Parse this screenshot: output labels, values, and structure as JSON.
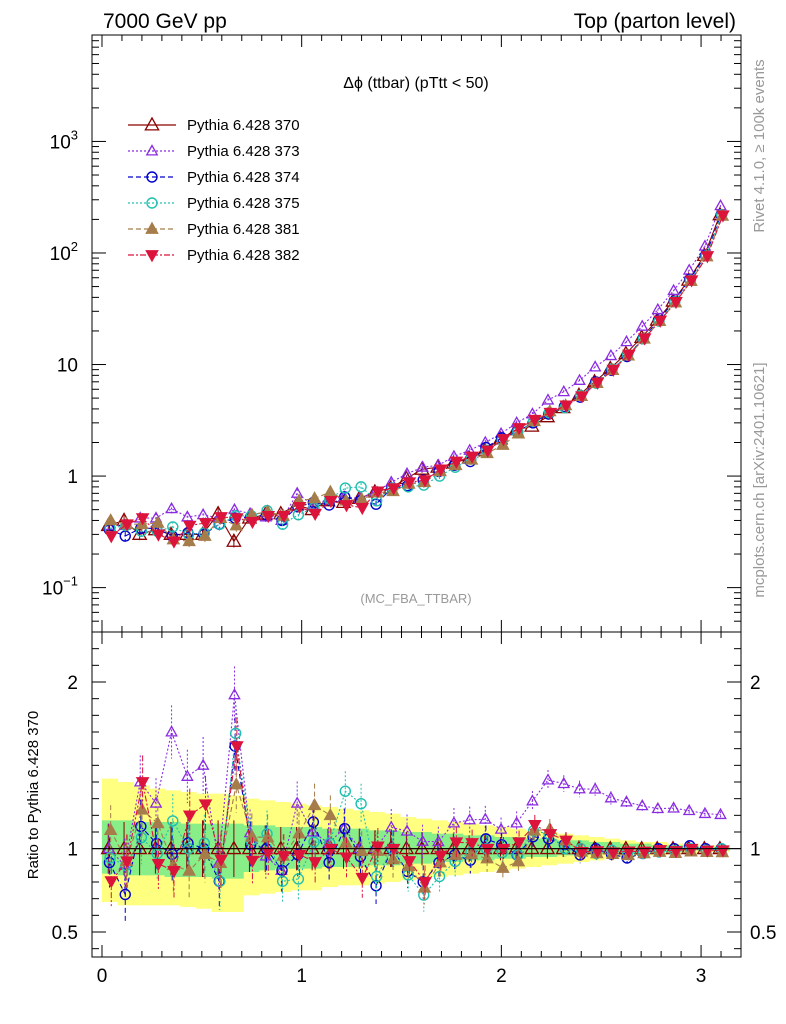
{
  "header": {
    "left": "7000 GeV pp",
    "right": "Top (parton level)"
  },
  "side_labels": {
    "rivet": "Rivet 4.1.0, ≥ 100k events",
    "mcplots": "mcplots.cern.ch [arXiv:2401.10621]"
  },
  "watermark": "(MC_FBA_TTBAR)",
  "colors": {
    "370": "#8b0000",
    "373": "#8a2be2",
    "374": "#0000cd",
    "375": "#20c0b0",
    "381": "#a57c4a",
    "382": "#dc143c",
    "band_outer": "#ffff80",
    "band_inner": "#88ee88"
  },
  "chart_data": {
    "type": "line",
    "title": "Δϕ (ttbar) (pTtt < 50)",
    "xlabel": "",
    "ylabel": "",
    "ratio_ylabel": "Ratio to Pythia 6.428 370",
    "xlim": [
      -0.05,
      3.2
    ],
    "ylim": [
      0.04,
      9000
    ],
    "yscale": "log",
    "ratio_ylim": [
      0.35,
      2.3
    ],
    "x_ticks": [
      "0",
      "1",
      "2",
      "3"
    ],
    "y_ticks": [
      "10^-1",
      "1",
      "10",
      "10^2",
      "10^3"
    ],
    "ratio_ticks": [
      "0.5",
      "1",
      "2"
    ],
    "x": [
      0.039,
      0.118,
      0.196,
      0.275,
      0.353,
      0.432,
      0.511,
      0.589,
      0.668,
      0.746,
      0.825,
      0.903,
      0.982,
      1.06,
      1.139,
      1.217,
      1.296,
      1.374,
      1.453,
      1.532,
      1.61,
      1.689,
      1.767,
      1.846,
      1.924,
      2.003,
      2.081,
      2.16,
      2.238,
      2.317,
      2.396,
      2.474,
      2.553,
      2.631,
      2.71,
      2.788,
      2.867,
      2.945,
      3.024,
      3.102
    ],
    "series": [
      {
        "name": "Pythia 6.428 370",
        "marker": "triangle-open",
        "line": "solid",
        "values": [
          0.36,
          0.4,
          0.3,
          0.33,
          0.3,
          0.3,
          0.3,
          0.46,
          0.26,
          0.42,
          0.45,
          0.46,
          0.55,
          0.5,
          0.6,
          0.58,
          0.63,
          0.72,
          0.78,
          0.95,
          1.15,
          1.2,
          1.3,
          1.45,
          1.7,
          2.15,
          2.6,
          2.8,
          3.4,
          4.1,
          5.3,
          7.0,
          9.2,
          12.5,
          17.5,
          25.0,
          37.0,
          57.0,
          95.0,
          220.0
        ]
      },
      {
        "name": "Pythia 6.428 373",
        "marker": "triangle-open-small",
        "line": "dotted",
        "values": [
          0.36,
          0.36,
          0.42,
          0.42,
          0.51,
          0.43,
          0.45,
          0.42,
          0.5,
          0.46,
          0.43,
          0.4,
          0.7,
          0.55,
          0.62,
          0.65,
          0.63,
          0.72,
          0.88,
          1.05,
          1.2,
          1.25,
          1.5,
          1.7,
          2.0,
          2.4,
          3.0,
          3.6,
          4.8,
          5.7,
          7.2,
          9.5,
          12.0,
          16.0,
          22.0,
          31.0,
          46.0,
          70.0,
          115.0,
          265.0
        ]
      },
      {
        "name": "Pythia 6.428 374",
        "marker": "circle-open",
        "line": "dashed",
        "values": [
          0.33,
          0.29,
          0.34,
          0.34,
          0.29,
          0.31,
          0.3,
          0.37,
          0.42,
          0.43,
          0.45,
          0.4,
          0.53,
          0.58,
          0.55,
          0.65,
          0.6,
          0.56,
          0.78,
          0.82,
          0.92,
          1.1,
          1.25,
          1.35,
          1.8,
          2.2,
          2.5,
          3.0,
          3.6,
          4.2,
          5.1,
          7.0,
          8.9,
          11.8,
          17.0,
          25.0,
          37.0,
          58.0,
          95.0,
          220.0
        ]
      },
      {
        "name": "Pythia 6.428 375",
        "marker": "circle-open-dotted",
        "line": "dotted",
        "values": [
          0.34,
          0.36,
          0.32,
          0.32,
          0.35,
          0.3,
          0.31,
          0.37,
          0.44,
          0.44,
          0.49,
          0.37,
          0.45,
          0.52,
          0.62,
          0.78,
          0.8,
          0.6,
          0.78,
          0.8,
          0.83,
          1.0,
          1.2,
          1.42,
          1.7,
          2.1,
          2.5,
          3.1,
          3.7,
          4.1,
          5.3,
          6.8,
          9.1,
          12.2,
          17.0,
          24.5,
          36.5,
          57.0,
          94.0,
          220.0
        ]
      },
      {
        "name": "Pythia 6.428 381",
        "marker": "triangle-filled",
        "line": "dashed",
        "values": [
          0.4,
          0.37,
          0.37,
          0.38,
          0.27,
          0.26,
          0.29,
          0.42,
          0.36,
          0.45,
          0.48,
          0.44,
          0.6,
          0.63,
          0.72,
          0.6,
          0.62,
          0.71,
          0.73,
          0.85,
          0.88,
          1.1,
          1.25,
          1.4,
          1.6,
          1.9,
          2.4,
          3.1,
          3.8,
          4.3,
          5.2,
          6.8,
          8.9,
          12.0,
          17.0,
          24.5,
          36.0,
          56.0,
          93.0,
          215.0
        ]
      },
      {
        "name": "Pythia 6.428 382",
        "marker": "triangle-down-filled",
        "line": "dashdot",
        "values": [
          0.29,
          0.37,
          0.42,
          0.3,
          0.26,
          0.36,
          0.38,
          0.43,
          0.42,
          0.39,
          0.44,
          0.44,
          0.53,
          0.46,
          0.6,
          0.55,
          0.52,
          0.73,
          0.78,
          0.88,
          0.92,
          1.15,
          1.35,
          1.5,
          1.7,
          2.15,
          2.7,
          3.2,
          3.7,
          4.3,
          5.2,
          6.9,
          9.0,
          12.3,
          17.2,
          24.8,
          36.5,
          57.0,
          94.0,
          218.0
        ]
      }
    ],
    "band_outer": {
      "lo": [
        0.68,
        0.66,
        0.66,
        0.66,
        0.66,
        0.65,
        0.64,
        0.62,
        0.62,
        0.72,
        0.73,
        0.74,
        0.75,
        0.75,
        0.77,
        0.78,
        0.78,
        0.79,
        0.8,
        0.81,
        0.82,
        0.83,
        0.84,
        0.85,
        0.86,
        0.87,
        0.88,
        0.89,
        0.9,
        0.91,
        0.92,
        0.93,
        0.94,
        0.95,
        0.96,
        0.96,
        0.97,
        0.97,
        0.98,
        0.98
      ],
      "hi": [
        1.42,
        1.4,
        1.38,
        1.36,
        1.35,
        1.34,
        1.33,
        1.33,
        1.32,
        1.3,
        1.29,
        1.28,
        1.27,
        1.26,
        1.25,
        1.24,
        1.23,
        1.22,
        1.21,
        1.19,
        1.18,
        1.17,
        1.16,
        1.15,
        1.14,
        1.13,
        1.12,
        1.11,
        1.1,
        1.09,
        1.08,
        1.07,
        1.06,
        1.05,
        1.04,
        1.04,
        1.03,
        1.03,
        1.02,
        1.02
      ]
    },
    "band_inner": {
      "lo": [
        0.85,
        0.84,
        0.84,
        0.84,
        0.83,
        0.83,
        0.83,
        0.82,
        0.82,
        0.86,
        0.87,
        0.88,
        0.88,
        0.88,
        0.89,
        0.89,
        0.89,
        0.9,
        0.9,
        0.91,
        0.91,
        0.92,
        0.92,
        0.93,
        0.93,
        0.94,
        0.94,
        0.95,
        0.95,
        0.96,
        0.96,
        0.97,
        0.97,
        0.97,
        0.98,
        0.98,
        0.98,
        0.99,
        0.99,
        0.99
      ],
      "hi": [
        1.17,
        1.17,
        1.16,
        1.16,
        1.16,
        1.15,
        1.15,
        1.15,
        1.15,
        1.14,
        1.14,
        1.13,
        1.13,
        1.13,
        1.12,
        1.12,
        1.12,
        1.11,
        1.11,
        1.1,
        1.1,
        1.09,
        1.09,
        1.08,
        1.08,
        1.07,
        1.07,
        1.06,
        1.06,
        1.05,
        1.05,
        1.04,
        1.04,
        1.03,
        1.03,
        1.02,
        1.02,
        1.02,
        1.01,
        1.01
      ]
    },
    "ratio_errors": [
      0.15,
      0.16,
      0.16,
      0.15,
      0.16,
      0.16,
      0.17,
      0.17,
      0.17,
      0.14,
      0.14,
      0.13,
      0.13,
      0.13,
      0.12,
      0.12,
      0.12,
      0.11,
      0.11,
      0.1,
      0.1,
      0.09,
      0.09,
      0.08,
      0.08,
      0.07,
      0.07,
      0.06,
      0.06,
      0.05,
      0.05,
      0.04,
      0.04,
      0.03,
      0.03,
      0.03,
      0.02,
      0.02,
      0.02,
      0.02
    ]
  }
}
